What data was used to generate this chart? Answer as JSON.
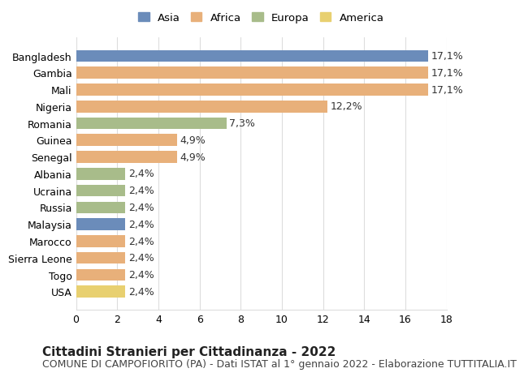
{
  "countries": [
    "Bangladesh",
    "Gambia",
    "Mali",
    "Nigeria",
    "Romania",
    "Guinea",
    "Senegal",
    "Albania",
    "Ucraina",
    "Russia",
    "Malaysia",
    "Marocco",
    "Sierra Leone",
    "Togo",
    "USA"
  ],
  "values": [
    17.1,
    17.1,
    17.1,
    12.2,
    7.3,
    4.9,
    4.9,
    2.4,
    2.4,
    2.4,
    2.4,
    2.4,
    2.4,
    2.4,
    2.4
  ],
  "labels": [
    "17,1%",
    "17,1%",
    "17,1%",
    "12,2%",
    "7,3%",
    "4,9%",
    "4,9%",
    "2,4%",
    "2,4%",
    "2,4%",
    "2,4%",
    "2,4%",
    "2,4%",
    "2,4%",
    "2,4%"
  ],
  "continents": [
    "Asia",
    "Africa",
    "Africa",
    "Africa",
    "Europa",
    "Africa",
    "Africa",
    "Europa",
    "Europa",
    "Europa",
    "Asia",
    "Africa",
    "Africa",
    "Africa",
    "America"
  ],
  "colors": {
    "Asia": "#6b8cba",
    "Africa": "#e8b07a",
    "Europa": "#a8bc8a",
    "America": "#e8d070"
  },
  "legend_order": [
    "Asia",
    "Africa",
    "Europa",
    "America"
  ],
  "title": "Cittadini Stranieri per Cittadinanza - 2022",
  "subtitle": "COMUNE DI CAMPOFIORITO (PA) - Dati ISTAT al 1° gennaio 2022 - Elaborazione TUTTITALIA.IT",
  "xlim": [
    0,
    18
  ],
  "xticks": [
    0,
    2,
    4,
    6,
    8,
    10,
    12,
    14,
    16,
    18
  ],
  "background_color": "#ffffff",
  "grid_color": "#dddddd",
  "bar_height": 0.7,
  "label_fontsize": 9,
  "title_fontsize": 11,
  "subtitle_fontsize": 9,
  "ytick_fontsize": 9,
  "xtick_fontsize": 9
}
